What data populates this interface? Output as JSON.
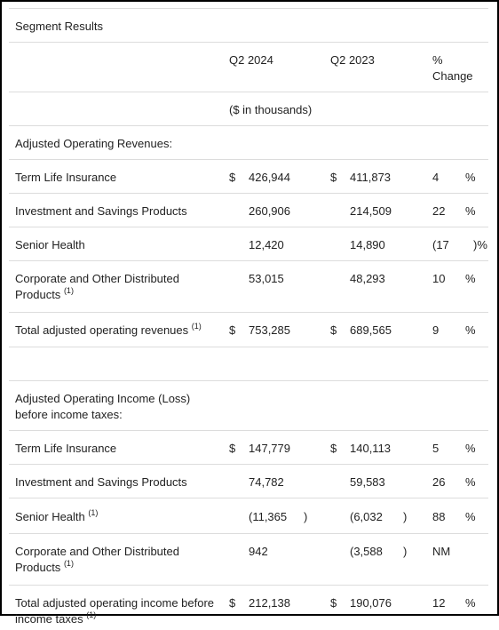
{
  "title": "Segment Results",
  "headers": {
    "col1": "Q2 2024",
    "col2": "Q2 2023",
    "col3_line1": "%",
    "col3_line2": "Change"
  },
  "units": "($ in thousands)",
  "footnote_marker": "(1)",
  "currency": "$",
  "revenues": {
    "heading": "Adjusted Operating Revenues:",
    "rows": [
      {
        "label": "Term Life Insurance",
        "q2_2024": "426,944",
        "q2_2023": "411,873",
        "change": "4",
        "change_suffix": "%"
      },
      {
        "label": "Investment and Savings Products",
        "q2_2024": "260,906",
        "q2_2023": "214,509",
        "change": "22",
        "change_suffix": "%"
      },
      {
        "label": "Senior Health",
        "q2_2024": "12,420",
        "q2_2023": "14,890",
        "change": "(17",
        "change_suffix": ")%"
      },
      {
        "label": "Corporate and Other Distributed Products",
        "q2_2024": "53,015",
        "q2_2023": "48,293",
        "change": "10",
        "change_suffix": "%"
      }
    ],
    "total": {
      "label": "Total adjusted operating revenues",
      "q2_2024": "753,285",
      "q2_2023": "689,565",
      "change": "9",
      "change_suffix": "%"
    }
  },
  "income": {
    "heading_line1": "Adjusted Operating Income (Loss)",
    "heading_line2": "before income taxes:",
    "rows": [
      {
        "label": "Term Life Insurance",
        "q2_2024": "147,779",
        "q2_2023": "140,113",
        "change": "5",
        "change_suffix": "%"
      },
      {
        "label": "Investment and Savings Products",
        "q2_2024": "74,782",
        "q2_2023": "59,583",
        "change": "26",
        "change_suffix": "%"
      },
      {
        "label": "Senior Health",
        "q2_2024": "(11,365",
        "q2_2024_close": ")",
        "q2_2023": "(6,032",
        "q2_2023_close": ")",
        "change": "88",
        "change_suffix": "%"
      },
      {
        "label": "Corporate and Other Distributed Products",
        "q2_2024": "942",
        "q2_2023": "(3,588",
        "q2_2023_close": ")",
        "change": "NM"
      }
    ],
    "total": {
      "label": "Total adjusted operating income before income taxes",
      "q2_2024": "212,138",
      "q2_2023": "190,076",
      "change": "12",
      "change_suffix": "%"
    }
  }
}
